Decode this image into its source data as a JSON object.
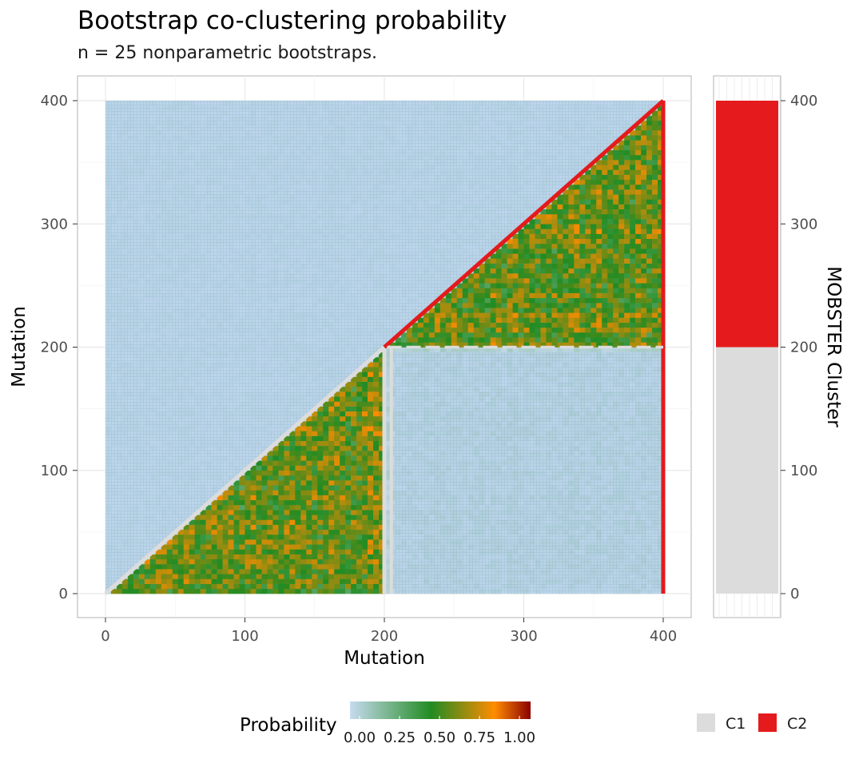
{
  "chart_data": {
    "type": "heatmap",
    "title": "Bootstrap co-clustering probability",
    "subtitle": "n = 25 nonparametric bootstraps.",
    "xlabel": "Mutation",
    "ylabel": "Mutation",
    "xlim": [
      0,
      400
    ],
    "ylim": [
      0,
      400
    ],
    "x_ticks": [
      0,
      100,
      200,
      300,
      400
    ],
    "y_ticks": [
      0,
      100,
      200,
      300,
      400
    ],
    "n_mutations": 400,
    "cluster_boundary": 200,
    "blocks": [
      {
        "x": [
          0,
          200
        ],
        "y": [
          0,
          200
        ],
        "region": "lower-triangle",
        "probability_range": [
          0.3,
          0.8
        ]
      },
      {
        "x": [
          200,
          400
        ],
        "y": [
          200,
          400
        ],
        "region": "lower-triangle",
        "probability_range": [
          0.3,
          0.8
        ]
      },
      {
        "x": [
          200,
          400
        ],
        "y": [
          0,
          200
        ],
        "region": "full",
        "probability_range": [
          0.0,
          0.1
        ]
      },
      {
        "x": [
          0,
          400
        ],
        "y": [
          0,
          400
        ],
        "region": "upper-triangle",
        "probability_range": [
          0.0,
          0.05
        ]
      }
    ],
    "legend": {
      "title": "Probability",
      "placement": "bottom",
      "ticks": [
        "0.00",
        "0.25",
        "0.50",
        "0.75",
        "1.00"
      ],
      "gradient": [
        "#c6dbef",
        "#228b22",
        "#ff8c00",
        "#8b0000"
      ]
    },
    "side_panel": {
      "label": "MOBSTER Cluster",
      "y_ticks": [
        0,
        100,
        200,
        300,
        400
      ],
      "clusters": [
        {
          "name": "C1",
          "from": 0,
          "to": 200,
          "color": "#dcdcdc"
        },
        {
          "name": "C2",
          "from": 200,
          "to": 400,
          "color": "#e41a1c"
        }
      ]
    }
  }
}
